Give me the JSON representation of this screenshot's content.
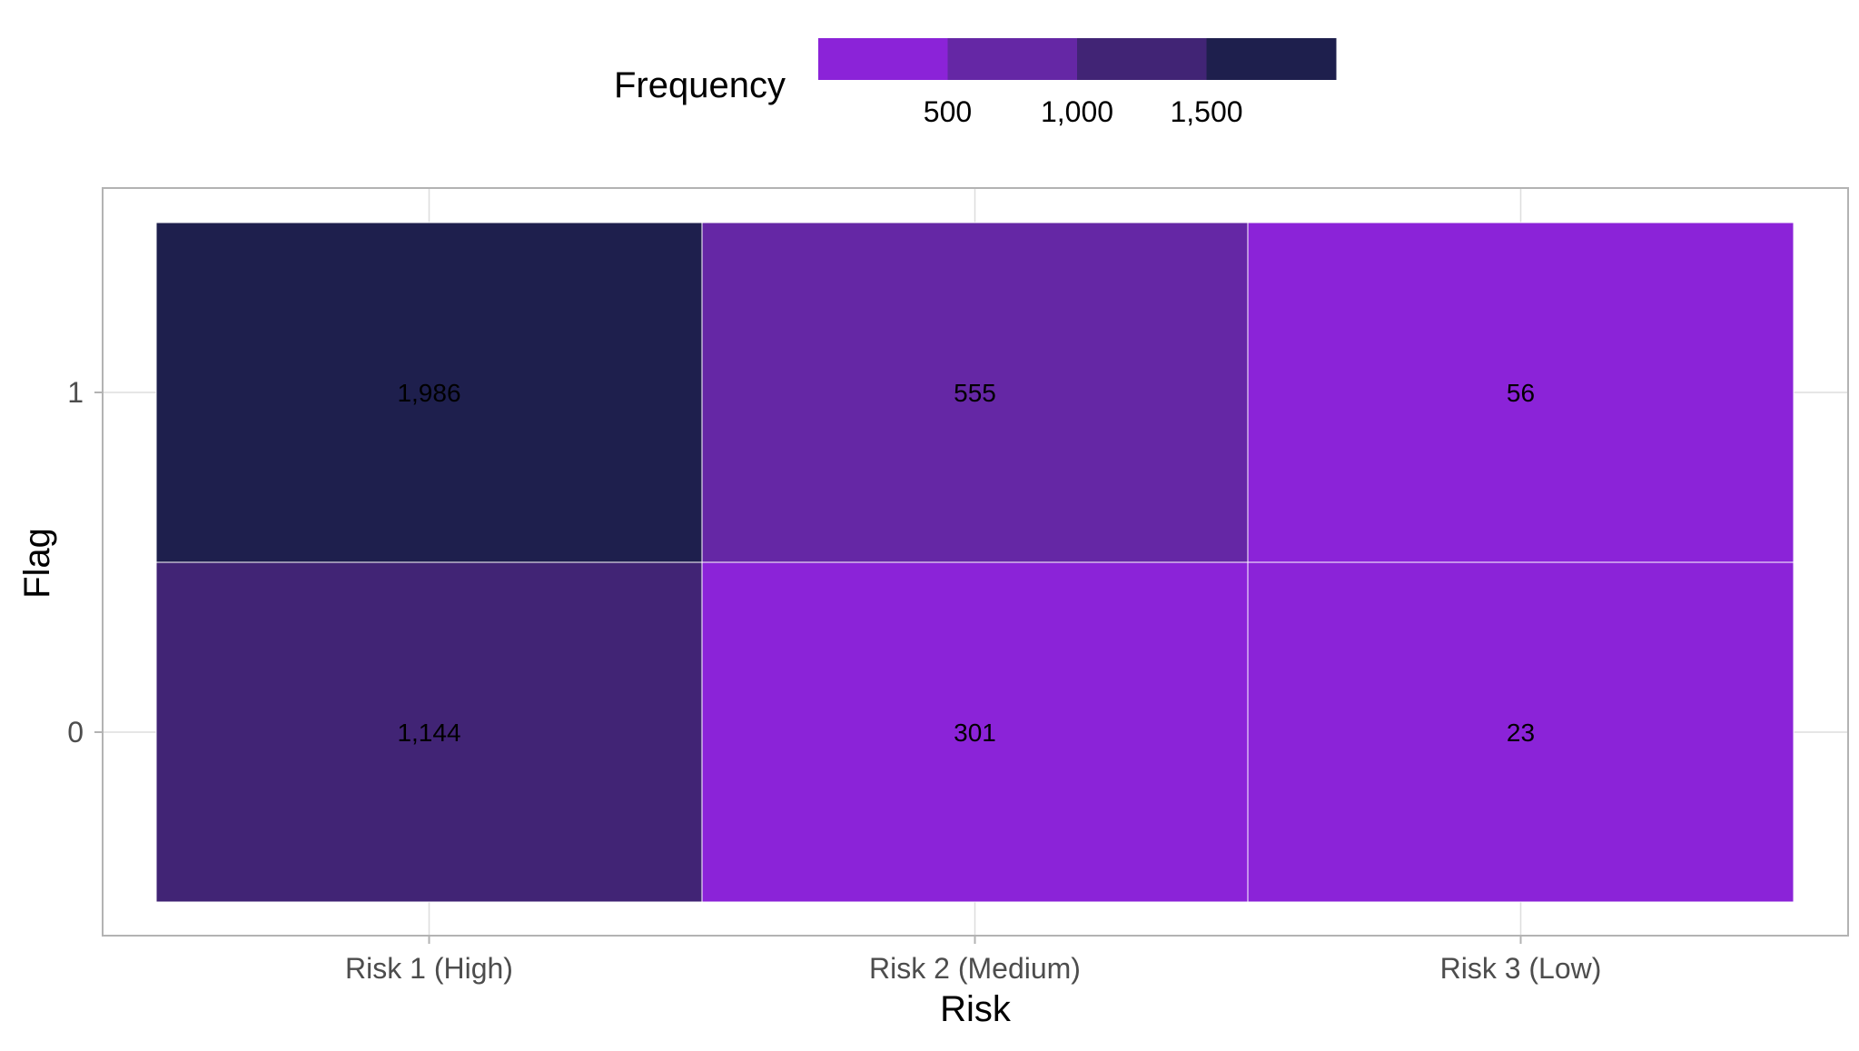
{
  "chart_data": {
    "type": "heatmap",
    "title": "",
    "xlabel": "Risk",
    "ylabel": "Flag",
    "x_categories": [
      "Risk 1 (High)",
      "Risk 2 (Medium)",
      "Risk 3 (Low)"
    ],
    "y_categories": [
      "0",
      "1"
    ],
    "cells": [
      {
        "x": "Risk 1 (High)",
        "y": "1",
        "value": 1986,
        "label": "1,986"
      },
      {
        "x": "Risk 2 (Medium)",
        "y": "1",
        "value": 555,
        "label": "555"
      },
      {
        "x": "Risk 3 (Low)",
        "y": "1",
        "value": 56,
        "label": "56"
      },
      {
        "x": "Risk 1 (High)",
        "y": "0",
        "value": 1144,
        "label": "1,144"
      },
      {
        "x": "Risk 2 (Medium)",
        "y": "0",
        "value": 301,
        "label": "301"
      },
      {
        "x": "Risk 3 (Low)",
        "y": "0",
        "value": 23,
        "label": "23"
      }
    ],
    "legend": {
      "title": "Frequency",
      "position": "top",
      "breaks": [
        500,
        1000,
        1500
      ],
      "break_labels": [
        "500",
        "1,000",
        "1,500"
      ],
      "bin_colors": [
        "#8B23D8",
        "#6527A5",
        "#412475",
        "#1E1F4D"
      ]
    },
    "grid": true
  }
}
